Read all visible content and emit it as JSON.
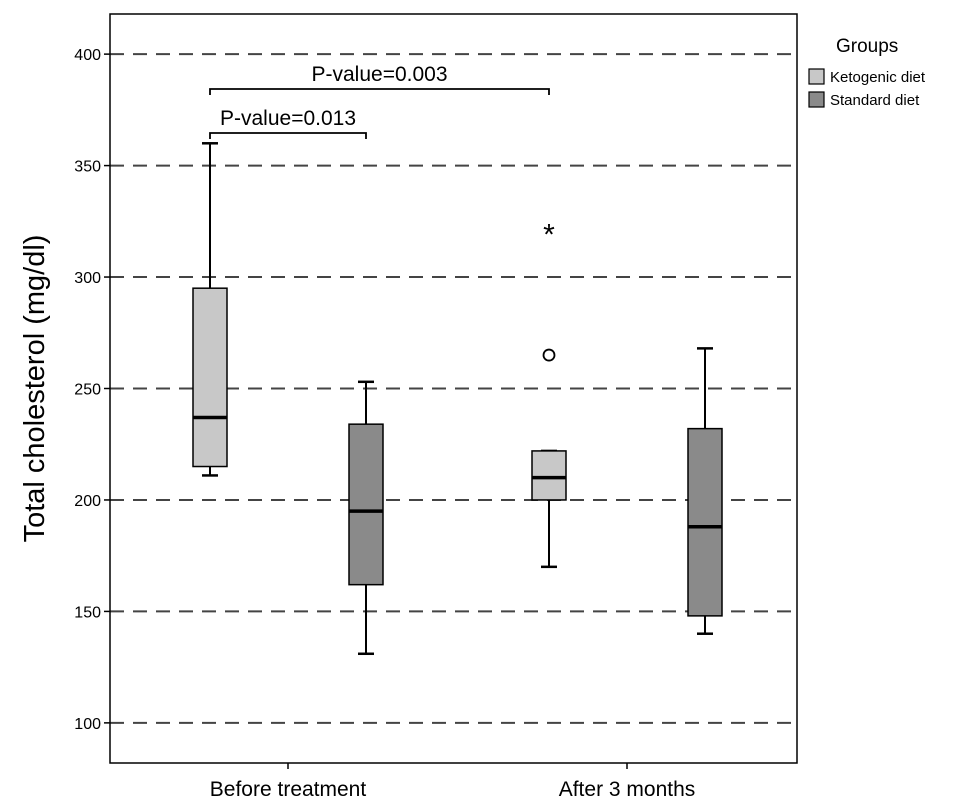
{
  "chart_data": {
    "type": "box",
    "ylabel": "Total cholesterol (mg/dl)",
    "xlabel": "",
    "ylim": [
      82,
      418
    ],
    "yticks": [
      100,
      150,
      200,
      250,
      300,
      350,
      400
    ],
    "grid": "horizontal-dashed",
    "categories": [
      "Before treatment",
      "After 3 months"
    ],
    "legend": {
      "title": "Groups",
      "placement": "right",
      "entries": [
        {
          "label": "Ketogenic diet",
          "color": "#c8c8c8"
        },
        {
          "label": "Standard diet",
          "color": "#8a8a8a"
        }
      ]
    },
    "series": [
      {
        "name": "Ketogenic diet",
        "color": "#c8c8c8",
        "boxes": [
          {
            "category": "Before treatment",
            "min": 211,
            "q1": 215,
            "median": 237,
            "q3": 295,
            "max": 360,
            "outliers": [],
            "extremes": []
          },
          {
            "category": "After 3 months",
            "min": 170,
            "q1": 200,
            "median": 210,
            "q3": 222,
            "max": 222,
            "outliers": [
              265
            ],
            "extremes": [
              320
            ]
          }
        ]
      },
      {
        "name": "Standard diet",
        "color": "#8a8a8a",
        "boxes": [
          {
            "category": "Before treatment",
            "min": 131,
            "q1": 162,
            "median": 195,
            "q3": 234,
            "max": 253,
            "outliers": [],
            "extremes": []
          },
          {
            "category": "After 3 months",
            "min": 140,
            "q1": 148,
            "median": 188,
            "q3": 232,
            "max": 268,
            "outliers": [],
            "extremes": []
          }
        ]
      }
    ],
    "annotations": [
      {
        "text": "P-value=0.013",
        "from": "Ketogenic diet / Before treatment",
        "to": "Standard diet / Before treatment"
      },
      {
        "text": "P-value=0.003",
        "from": "Ketogenic diet / Before treatment",
        "to": "Ketogenic diet / After 3 months"
      }
    ]
  }
}
